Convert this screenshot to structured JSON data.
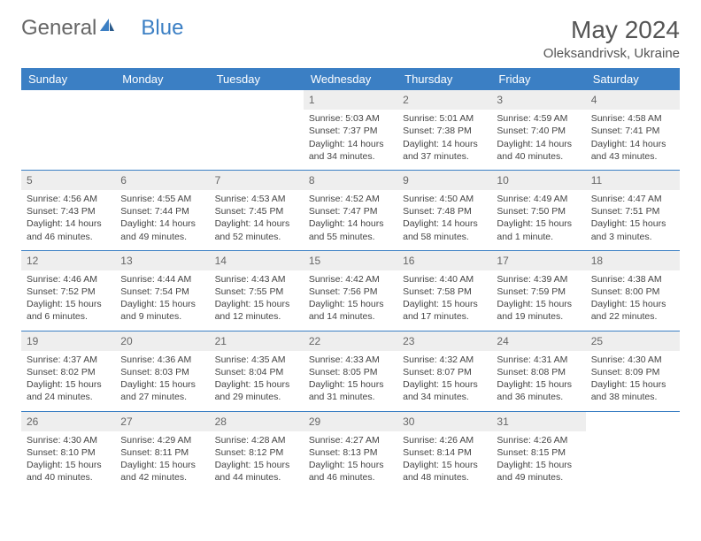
{
  "logo": {
    "part1": "General",
    "part2": "Blue"
  },
  "title": "May 2024",
  "location": "Oleksandrivsk, Ukraine",
  "colors": {
    "header_bg": "#3b7fc4",
    "header_text": "#ffffff",
    "daynum_bg": "#eeeeee",
    "border": "#3b7fc4",
    "text": "#444444",
    "background": "#ffffff"
  },
  "font": {
    "family": "Arial",
    "body_size_pt": 8,
    "title_size_pt": 21,
    "header_size_pt": 10
  },
  "dayNames": [
    "Sunday",
    "Monday",
    "Tuesday",
    "Wednesday",
    "Thursday",
    "Friday",
    "Saturday"
  ],
  "weeks": [
    [
      null,
      null,
      null,
      {
        "n": "1",
        "sunrise": "Sunrise: 5:03 AM",
        "sunset": "Sunset: 7:37 PM",
        "d1": "Daylight: 14 hours",
        "d2": "and 34 minutes."
      },
      {
        "n": "2",
        "sunrise": "Sunrise: 5:01 AM",
        "sunset": "Sunset: 7:38 PM",
        "d1": "Daylight: 14 hours",
        "d2": "and 37 minutes."
      },
      {
        "n": "3",
        "sunrise": "Sunrise: 4:59 AM",
        "sunset": "Sunset: 7:40 PM",
        "d1": "Daylight: 14 hours",
        "d2": "and 40 minutes."
      },
      {
        "n": "4",
        "sunrise": "Sunrise: 4:58 AM",
        "sunset": "Sunset: 7:41 PM",
        "d1": "Daylight: 14 hours",
        "d2": "and 43 minutes."
      }
    ],
    [
      {
        "n": "5",
        "sunrise": "Sunrise: 4:56 AM",
        "sunset": "Sunset: 7:43 PM",
        "d1": "Daylight: 14 hours",
        "d2": "and 46 minutes."
      },
      {
        "n": "6",
        "sunrise": "Sunrise: 4:55 AM",
        "sunset": "Sunset: 7:44 PM",
        "d1": "Daylight: 14 hours",
        "d2": "and 49 minutes."
      },
      {
        "n": "7",
        "sunrise": "Sunrise: 4:53 AM",
        "sunset": "Sunset: 7:45 PM",
        "d1": "Daylight: 14 hours",
        "d2": "and 52 minutes."
      },
      {
        "n": "8",
        "sunrise": "Sunrise: 4:52 AM",
        "sunset": "Sunset: 7:47 PM",
        "d1": "Daylight: 14 hours",
        "d2": "and 55 minutes."
      },
      {
        "n": "9",
        "sunrise": "Sunrise: 4:50 AM",
        "sunset": "Sunset: 7:48 PM",
        "d1": "Daylight: 14 hours",
        "d2": "and 58 minutes."
      },
      {
        "n": "10",
        "sunrise": "Sunrise: 4:49 AM",
        "sunset": "Sunset: 7:50 PM",
        "d1": "Daylight: 15 hours",
        "d2": "and 1 minute."
      },
      {
        "n": "11",
        "sunrise": "Sunrise: 4:47 AM",
        "sunset": "Sunset: 7:51 PM",
        "d1": "Daylight: 15 hours",
        "d2": "and 3 minutes."
      }
    ],
    [
      {
        "n": "12",
        "sunrise": "Sunrise: 4:46 AM",
        "sunset": "Sunset: 7:52 PM",
        "d1": "Daylight: 15 hours",
        "d2": "and 6 minutes."
      },
      {
        "n": "13",
        "sunrise": "Sunrise: 4:44 AM",
        "sunset": "Sunset: 7:54 PM",
        "d1": "Daylight: 15 hours",
        "d2": "and 9 minutes."
      },
      {
        "n": "14",
        "sunrise": "Sunrise: 4:43 AM",
        "sunset": "Sunset: 7:55 PM",
        "d1": "Daylight: 15 hours",
        "d2": "and 12 minutes."
      },
      {
        "n": "15",
        "sunrise": "Sunrise: 4:42 AM",
        "sunset": "Sunset: 7:56 PM",
        "d1": "Daylight: 15 hours",
        "d2": "and 14 minutes."
      },
      {
        "n": "16",
        "sunrise": "Sunrise: 4:40 AM",
        "sunset": "Sunset: 7:58 PM",
        "d1": "Daylight: 15 hours",
        "d2": "and 17 minutes."
      },
      {
        "n": "17",
        "sunrise": "Sunrise: 4:39 AM",
        "sunset": "Sunset: 7:59 PM",
        "d1": "Daylight: 15 hours",
        "d2": "and 19 minutes."
      },
      {
        "n": "18",
        "sunrise": "Sunrise: 4:38 AM",
        "sunset": "Sunset: 8:00 PM",
        "d1": "Daylight: 15 hours",
        "d2": "and 22 minutes."
      }
    ],
    [
      {
        "n": "19",
        "sunrise": "Sunrise: 4:37 AM",
        "sunset": "Sunset: 8:02 PM",
        "d1": "Daylight: 15 hours",
        "d2": "and 24 minutes."
      },
      {
        "n": "20",
        "sunrise": "Sunrise: 4:36 AM",
        "sunset": "Sunset: 8:03 PM",
        "d1": "Daylight: 15 hours",
        "d2": "and 27 minutes."
      },
      {
        "n": "21",
        "sunrise": "Sunrise: 4:35 AM",
        "sunset": "Sunset: 8:04 PM",
        "d1": "Daylight: 15 hours",
        "d2": "and 29 minutes."
      },
      {
        "n": "22",
        "sunrise": "Sunrise: 4:33 AM",
        "sunset": "Sunset: 8:05 PM",
        "d1": "Daylight: 15 hours",
        "d2": "and 31 minutes."
      },
      {
        "n": "23",
        "sunrise": "Sunrise: 4:32 AM",
        "sunset": "Sunset: 8:07 PM",
        "d1": "Daylight: 15 hours",
        "d2": "and 34 minutes."
      },
      {
        "n": "24",
        "sunrise": "Sunrise: 4:31 AM",
        "sunset": "Sunset: 8:08 PM",
        "d1": "Daylight: 15 hours",
        "d2": "and 36 minutes."
      },
      {
        "n": "25",
        "sunrise": "Sunrise: 4:30 AM",
        "sunset": "Sunset: 8:09 PM",
        "d1": "Daylight: 15 hours",
        "d2": "and 38 minutes."
      }
    ],
    [
      {
        "n": "26",
        "sunrise": "Sunrise: 4:30 AM",
        "sunset": "Sunset: 8:10 PM",
        "d1": "Daylight: 15 hours",
        "d2": "and 40 minutes."
      },
      {
        "n": "27",
        "sunrise": "Sunrise: 4:29 AM",
        "sunset": "Sunset: 8:11 PM",
        "d1": "Daylight: 15 hours",
        "d2": "and 42 minutes."
      },
      {
        "n": "28",
        "sunrise": "Sunrise: 4:28 AM",
        "sunset": "Sunset: 8:12 PM",
        "d1": "Daylight: 15 hours",
        "d2": "and 44 minutes."
      },
      {
        "n": "29",
        "sunrise": "Sunrise: 4:27 AM",
        "sunset": "Sunset: 8:13 PM",
        "d1": "Daylight: 15 hours",
        "d2": "and 46 minutes."
      },
      {
        "n": "30",
        "sunrise": "Sunrise: 4:26 AM",
        "sunset": "Sunset: 8:14 PM",
        "d1": "Daylight: 15 hours",
        "d2": "and 48 minutes."
      },
      {
        "n": "31",
        "sunrise": "Sunrise: 4:26 AM",
        "sunset": "Sunset: 8:15 PM",
        "d1": "Daylight: 15 hours",
        "d2": "and 49 minutes."
      },
      null
    ]
  ]
}
